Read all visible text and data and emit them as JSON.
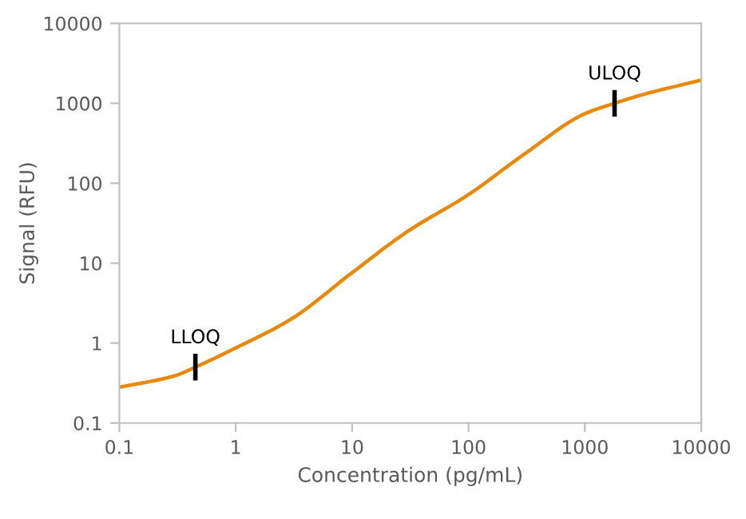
{
  "chart_data": {
    "type": "line",
    "xlabel": "Concentration (pg/mL)",
    "ylabel": "Signal (RFU)",
    "log": "xy",
    "x": [
      0.1,
      0.3,
      0.45,
      1,
      3,
      10,
      30,
      100,
      300,
      1000,
      1800,
      3000,
      10000
    ],
    "series": [
      {
        "color": "#e8890c",
        "values": [
          0.28,
          0.39,
          0.5,
          0.87,
          2.0,
          7.6,
          25,
          72,
          230,
          740,
          1000,
          1260,
          1950
        ]
      }
    ],
    "xlim": [
      0.1,
      10000
    ],
    "ylim": [
      0.1,
      10000
    ],
    "xticks": [
      0.1,
      1,
      10,
      100,
      1000,
      10000
    ],
    "yticks": [
      0.1,
      1,
      10,
      100,
      1000,
      10000
    ],
    "grid": false,
    "legend": false,
    "marker": "none",
    "line_style": "solid",
    "annotations": [
      {
        "text": "LLOQ",
        "x": 0.45,
        "y": 0.5
      },
      {
        "text": "ULOQ",
        "x": 1800,
        "y": 1000
      }
    ]
  }
}
